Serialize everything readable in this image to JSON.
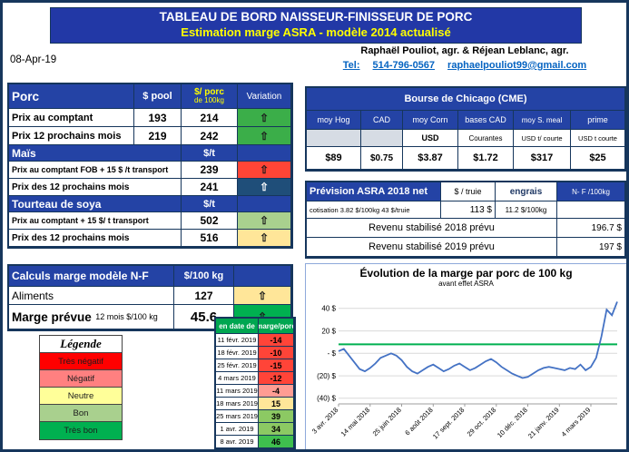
{
  "header": {
    "title": "TABLEAU DE BORD NAISSEUR-FINISSEUR DE PORC",
    "subtitle": "Estimation marge ASRA - modèle 2014 actualisé"
  },
  "info": {
    "date": "08-Apr-19",
    "authors": "Raphaël Pouliot, agr.   &   Réjean Leblanc, agr.",
    "tel_label": "Tel:",
    "phone": "514-796-0567",
    "email": "raphaelpouliot99@gmail.com"
  },
  "icons": {
    "up_arrow": "⇧"
  },
  "porc": {
    "col_label": "Porc",
    "col_pool": "$ pool",
    "col_porc_1": "$/ porc",
    "col_porc_2": "de 100kg",
    "col_variation": "Variation",
    "rows": [
      {
        "label": "Prix au comptant",
        "pool": "193",
        "value": "214",
        "variation": "up",
        "variation_color": "#3BAE49"
      },
      {
        "label": "Prix 12 prochains mois",
        "pool": "219",
        "value": "242",
        "variation": "up",
        "variation_color": "#3BAE49"
      }
    ]
  },
  "mais": {
    "title": "Maïs",
    "unit": "$/t",
    "rows": [
      {
        "label": "Prix au comptant FOB + 15 $ /t transport",
        "value": "239",
        "variation": "up",
        "variation_color": "#FF4536"
      },
      {
        "label": "Prix des 12 prochains mois",
        "value": "241",
        "variation": "up",
        "variation_color": "#1F4E79"
      }
    ]
  },
  "soya": {
    "title": "Tourteau de soya",
    "unit": "$/t",
    "rows": [
      {
        "label": "Prix au comptant + 15 $/ t transport",
        "value": "502",
        "variation": "up",
        "variation_color": "#A9D08E"
      },
      {
        "label": "Prix des 12 prochains mois",
        "value": "516",
        "variation": "up",
        "variation_color": "#FFE699"
      }
    ]
  },
  "calculs": {
    "title": "Calculs marge  modèle N-F",
    "unit": "$/100 kg",
    "aliments_label": "Aliments",
    "aliments_value": "127",
    "aliments_color": "#FFE699",
    "marge_label": "Marge prévue",
    "marge_sub": "12 mois  $/100 kg",
    "marge_value": "45.6",
    "marge_color": "#00B050"
  },
  "legende": {
    "title": "Légende",
    "items": [
      {
        "label": "Très négatif",
        "color": "#FF0000"
      },
      {
        "label": "Négatif",
        "color": "#FF8080"
      },
      {
        "label": "Neutre",
        "color": "#FFFF99"
      },
      {
        "label": "Bon",
        "color": "#A9D08E"
      },
      {
        "label": "Très bon",
        "color": "#00B050"
      }
    ]
  },
  "marge_table": {
    "col_date": "en date de",
    "col_value": "marge/porc",
    "rows": [
      {
        "date": "11 févr. 2019",
        "value": "-14",
        "color": "#FF4438"
      },
      {
        "date": "18 févr. 2019",
        "value": "-10",
        "color": "#FF4438"
      },
      {
        "date": "25 févr. 2019",
        "value": "-15",
        "color": "#FF4438"
      },
      {
        "date": "4 mars 2019",
        "value": "-12",
        "color": "#FF4438"
      },
      {
        "date": "11 mars 2019",
        "value": "-4",
        "color": "#FF9C93"
      },
      {
        "date": "18 mars 2019",
        "value": "15",
        "color": "#FFE699"
      },
      {
        "date": "25 mars 2019",
        "value": "39",
        "color": "#8CC963"
      },
      {
        "date": "1 avr. 2019",
        "value": "34",
        "color": "#8CC963"
      },
      {
        "date": "8 avr. 2019",
        "value": "46",
        "color": "#3FBF4E"
      }
    ]
  },
  "cme": {
    "title": "Bourse de Chicago (CME)",
    "columns": [
      "moy Hog",
      "CAD",
      "moy Corn",
      "bases CAD",
      "moy S. meal",
      "prime"
    ],
    "units": [
      "",
      "",
      "USD",
      "Courantes",
      "USD t/ courte",
      "USD t courte"
    ],
    "values": [
      "$89",
      "$0.75",
      "$3.87",
      "$1.72",
      "$317",
      "$25"
    ]
  },
  "asra": {
    "title": "Prévision ASRA 2018 net",
    "col_truie": "$ / truie",
    "col_engrais": "engrais",
    "col_nf": "N- F /100kg",
    "cotisation": "cotisation 3.82 $/100kg  43 $/truie",
    "truie_value": "113  $",
    "engrais_value": "11.2 $/100kg",
    "rev2018_label": "Revenu stabilisé 2018 prévu",
    "rev2018_value": "196.7 $",
    "rev2019_label": "Revenu stabilisé 2019 prévu",
    "rev2019_value": "197 $"
  },
  "chart_data": {
    "type": "line",
    "title": "Évolution de la marge par porc de 100 kg",
    "subtitle": "avant effet ASRA",
    "ylabel": "",
    "xlabel": "",
    "ylim": [
      -45,
      52
    ],
    "grid": true,
    "legend": "none",
    "line_color": "#4472C4",
    "reference_line": {
      "value": 8,
      "color": "#00B050"
    },
    "y_ticks": [
      {
        "v": 40,
        "label": "40 $"
      },
      {
        "v": 20,
        "label": "20 $"
      },
      {
        "v": 0,
        "label": "-  $"
      },
      {
        "v": -20,
        "label": "(20) $"
      },
      {
        "v": -40,
        "label": "(40) $"
      }
    ],
    "x_tick_labels": [
      "3 avr. 2018",
      "14 mai 2018",
      "25 juin 2018",
      "6 août 2018",
      "17 sept. 2018",
      "29 oct. 2018",
      "10 déc. 2018",
      "21 janv. 2019",
      "4 mars 2019"
    ],
    "x_tick_indices": [
      0,
      6,
      12,
      18,
      24,
      30,
      36,
      42,
      48
    ],
    "values": [
      2,
      4,
      -2,
      -8,
      -14,
      -16,
      -13,
      -9,
      -4,
      -2,
      0,
      -2,
      -6,
      -12,
      -16,
      -18,
      -15,
      -12,
      -10,
      -13,
      -16,
      -14,
      -11,
      -9,
      -12,
      -15,
      -13,
      -10,
      -7,
      -5,
      -8,
      -12,
      -15,
      -18,
      -20,
      -22,
      -21,
      -18,
      -15,
      -13,
      -12,
      -13,
      -14,
      -15,
      -13,
      -14,
      -10,
      -15,
      -12,
      -4,
      15,
      39,
      34,
      46
    ]
  }
}
